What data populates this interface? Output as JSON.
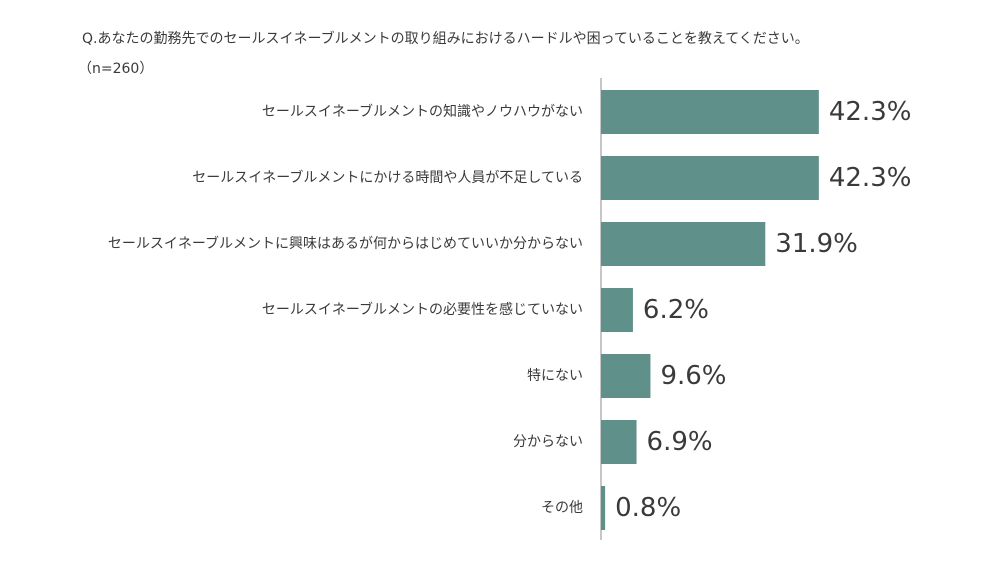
{
  "question": "Q.あなたの勤務先でのセールスイネーブルメントの取り組みにおけるハードルや困っていることを教えてください。",
  "sample_size": "（n=260）",
  "colors": {
    "bar": "#5f9089",
    "axis": "#8c8c8c",
    "text": "#3a3a3a"
  },
  "chart_data": {
    "type": "bar",
    "orientation": "horizontal",
    "title": "",
    "unit": "%",
    "categories": [
      "セールスイネーブルメントの知識やノウハウがない",
      "セールスイネーブルメントにかける時間や人員が不足している",
      "セールスイネーブルメントに興味はあるが何からはじめていいか分からない",
      "セールスイネーブルメントの必要性を感じていない",
      "特にない",
      "分からない",
      "その他"
    ],
    "values": [
      42.3,
      42.3,
      31.9,
      6.2,
      9.6,
      6.9,
      0.8
    ],
    "value_labels": [
      "42.3%",
      "42.3%",
      "31.9%",
      "6.2%",
      "9.6%",
      "6.9%",
      "0.8%"
    ],
    "grid": false,
    "legend": "none"
  }
}
